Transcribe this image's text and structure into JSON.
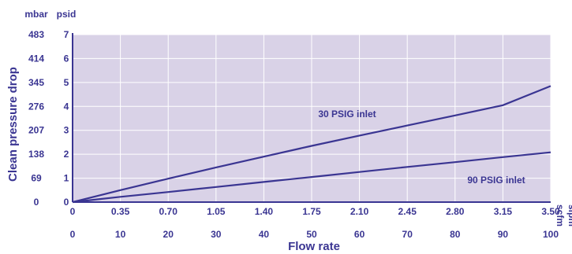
{
  "chart_data": {
    "type": "line",
    "title": "",
    "xlabel": "Flow rate",
    "ylabel": "Clean pressure drop",
    "x_unit_primary": "scfm",
    "x_unit_secondary": "slpm",
    "y_unit_primary": "psid",
    "y_unit_secondary": "mbar",
    "xlim": [
      0,
      3.5
    ],
    "ylim": [
      0,
      7
    ],
    "grid": true,
    "legend": "inline labels",
    "x_ticks_scfm": [
      "0",
      "0.35",
      "0.70",
      "1.05",
      "1.40",
      "1.75",
      "2.10",
      "2.45",
      "2.80",
      "3.15",
      "3.50"
    ],
    "x_ticks_slpm": [
      "0",
      "10",
      "20",
      "30",
      "40",
      "50",
      "60",
      "70",
      "80",
      "90",
      "100"
    ],
    "y_ticks_psid": [
      "0",
      "1",
      "2",
      "3",
      "4",
      "5",
      "6",
      "7"
    ],
    "y_ticks_mbar": [
      "0",
      "69",
      "138",
      "207",
      "276",
      "345",
      "414",
      "483"
    ],
    "series": [
      {
        "name": "30 PSIG inlet",
        "x": [
          0,
          0.35,
          0.7,
          1.05,
          1.4,
          1.75,
          2.1,
          2.45,
          2.8,
          3.15,
          3.5
        ],
        "y": [
          0,
          0.5,
          0.98,
          1.45,
          1.9,
          2.35,
          2.78,
          3.2,
          3.62,
          4.05,
          4.85
        ]
      },
      {
        "name": "90 PSIG inlet",
        "x": [
          0,
          0.35,
          0.7,
          1.05,
          1.4,
          1.75,
          2.1,
          2.45,
          2.8,
          3.15,
          3.5
        ],
        "y": [
          0,
          0.22,
          0.42,
          0.63,
          0.84,
          1.05,
          1.26,
          1.47,
          1.67,
          1.88,
          2.08
        ]
      }
    ],
    "colors": {
      "plot_background": "#d9d2e7",
      "grid": "#ffffff",
      "line": "#3a3592",
      "text": "#3a3592"
    }
  }
}
